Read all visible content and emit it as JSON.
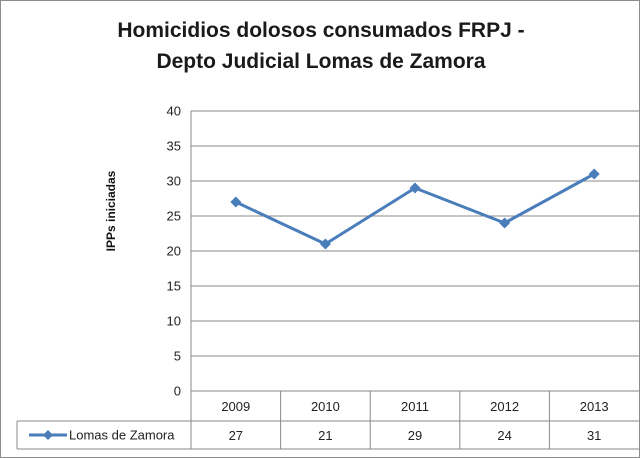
{
  "chart_data": {
    "type": "line",
    "title": [
      "Homicidios dolosos consumados FRPJ -",
      "Depto Judicial Lomas de Zamora"
    ],
    "xlabel": "",
    "ylabel": "IPPs iniciadas",
    "categories": [
      "2009",
      "2010",
      "2011",
      "2012",
      "2013"
    ],
    "series": [
      {
        "name": "Lomas de Zamora",
        "values": [
          27,
          21,
          29,
          24,
          31
        ],
        "color": "#4a7ebb"
      }
    ],
    "ylim": [
      0,
      40
    ],
    "yticks": [
      0,
      5,
      10,
      15,
      20,
      25,
      30,
      35,
      40
    ],
    "grid": "horizontal",
    "legend": "data table below x-axis",
    "data_table": true
  }
}
